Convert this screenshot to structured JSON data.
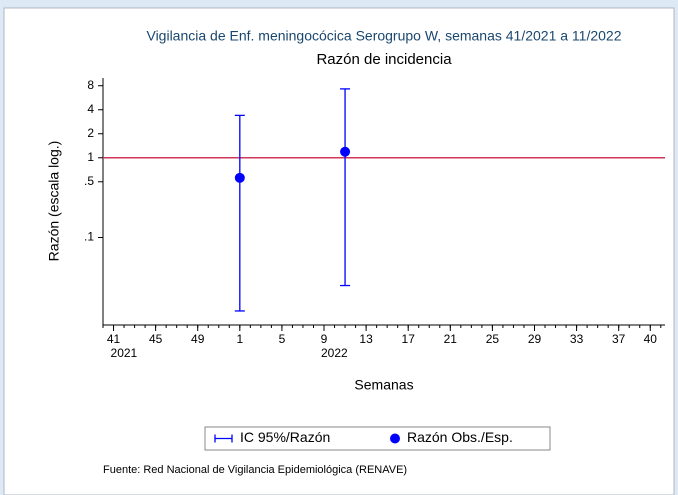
{
  "chart_data": {
    "type": "scatter",
    "title": "Vigilancia de Enf. meningocócica Serogrupo W, semanas 41/2021 a 11/2022",
    "subtitle": "Razón de incidencia",
    "x_label": "Semanas",
    "y_label": "Razón (escala log.)",
    "note": "Fuente: Red Nacional de Vigilancia Epidemiológica (RENAVE)",
    "x": [
      53,
      63
    ],
    "series": [
      {
        "name": "IC 95%/Razón",
        "color": "#0000ff",
        "lower": [
          0.012,
          0.025
        ],
        "upper": [
          3.4,
          7.3
        ]
      },
      {
        "name": "Razón Obs./Esp.",
        "color": "#0000ff",
        "values": [
          0.56,
          1.19
        ]
      }
    ],
    "reference_line": {
      "value": 1,
      "color": "#d0375a"
    },
    "log_y": true,
    "xlim": [
      40,
      93.4
    ],
    "ylim": [
      0.008,
      10
    ],
    "xticks": [
      41,
      45,
      49,
      {
        "value": 53,
        "label": "1"
      },
      {
        "value": 57,
        "label": "5"
      },
      {
        "value": 61,
        "label": "9"
      },
      {
        "value": 65,
        "label": "13"
      },
      {
        "value": 69,
        "label": "17"
      },
      {
        "value": 73,
        "label": "21"
      },
      {
        "value": 77,
        "label": "25"
      },
      {
        "value": 81,
        "label": "29"
      },
      {
        "value": 85,
        "label": "33"
      },
      {
        "value": 89,
        "label": "37"
      },
      {
        "value": 92,
        "label": "40"
      }
    ],
    "year_labels": [
      {
        "value": 41,
        "label": "2021"
      },
      {
        "value": 61,
        "label": "2022"
      }
    ],
    "yticks": [
      8,
      4,
      2,
      1,
      {
        "value": 0.5,
        "label": ".5"
      },
      {
        "value": 0.1,
        "label": ".1"
      }
    ],
    "legend": "bottom"
  }
}
